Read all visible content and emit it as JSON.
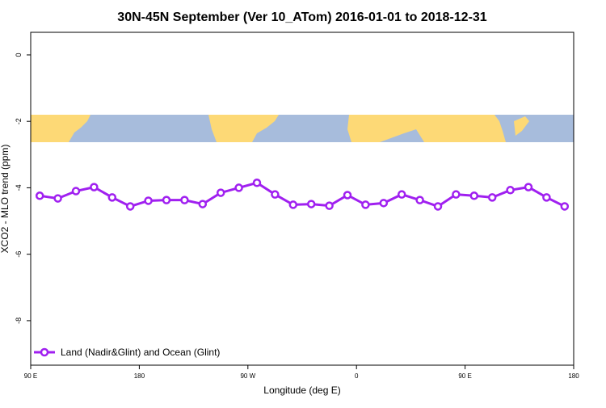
{
  "chart_data": {
    "type": "line",
    "title": "30N-45N September (Ver 10_ATom)   2016-01-01 to 2018-12-31",
    "x_label": "Longitude (deg E)",
    "y_label": "XCO2 - MLO trend (ppm)",
    "x": [
      97.5,
      112.5,
      127.5,
      142.5,
      157.5,
      172.5,
      187.5,
      202.5,
      217.5,
      232.5,
      247.5,
      262.5,
      277.5,
      292.5,
      307.5,
      322.5,
      337.5,
      352.5,
      367.5,
      382.5,
      397.5,
      412.5,
      427.5,
      442.5,
      457.5,
      472.5,
      487.5,
      502.5,
      517.5,
      532.5
    ],
    "series": [
      {
        "name": "Land (Nadir&Glint) and Ocean (Glint)",
        "color": "#a020f0",
        "values": [
          -4.24,
          -4.32,
          -4.1,
          -3.98,
          -4.29,
          -4.56,
          -4.39,
          -4.37,
          -4.37,
          -4.49,
          -4.15,
          -4.0,
          -3.85,
          -4.2,
          -4.51,
          -4.49,
          -4.54,
          -4.22,
          -4.51,
          -4.46,
          -4.2,
          -4.37,
          -4.56,
          -4.2,
          -4.24,
          -4.29,
          -4.07,
          -3.98,
          -4.29,
          -4.56
        ]
      }
    ],
    "xlim": [
      90,
      540
    ],
    "xticks": [
      {
        "value": 90,
        "label": "90 E"
      },
      {
        "value": 180,
        "label": "180"
      },
      {
        "value": 270,
        "label": "90 W"
      },
      {
        "value": 360,
        "label": "0"
      },
      {
        "value": 450,
        "label": "90 E"
      },
      {
        "value": 540,
        "label": "180"
      }
    ],
    "ylim": [
      -9.34,
      0.68
    ],
    "yticks": [
      0,
      -2,
      -4,
      -6,
      -8
    ],
    "legend": "bottom-left"
  }
}
